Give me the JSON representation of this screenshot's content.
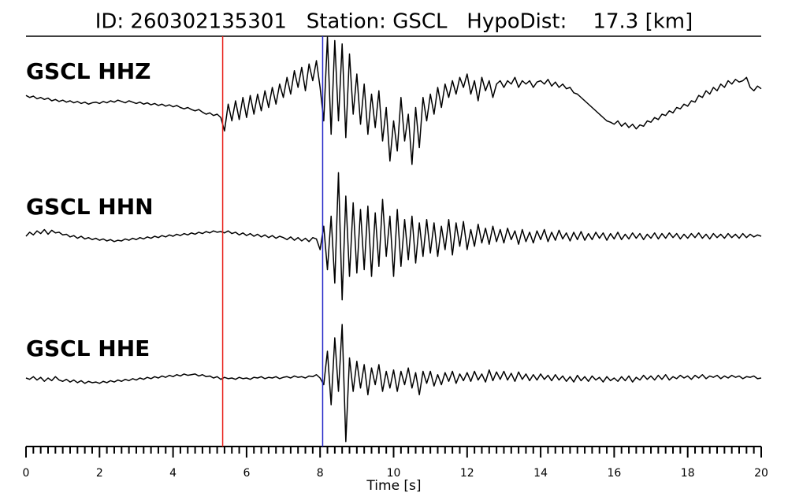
{
  "chart_data": {
    "type": "seismogram",
    "title": "ID: 260302135301   Station: GSCL   HypoDist:    17.3 [km]",
    "xlabel": "Time [s]",
    "xlim": [
      0,
      20
    ],
    "xticks": [
      0,
      2,
      4,
      6,
      8,
      10,
      12,
      14,
      16,
      18,
      20
    ],
    "xminorticks": [
      0.2,
      0.4,
      0.6,
      0.8,
      1,
      1.2,
      1.4,
      1.6,
      1.8,
      2.2,
      2.4,
      2.6,
      2.8,
      3,
      3.2,
      3.4,
      3.6,
      3.8,
      4.2,
      4.4,
      4.6,
      4.8,
      5,
      5.2,
      5.4,
      5.6,
      5.8,
      6.2,
      6.4,
      6.6,
      6.8,
      7,
      7.2,
      7.4,
      7.6,
      7.8,
      8.2,
      8.4,
      8.6,
      8.8,
      9,
      9.2,
      9.4,
      9.6,
      9.8,
      10.2,
      10.4,
      10.6,
      10.8,
      11,
      11.2,
      11.4,
      11.6,
      11.8,
      12.2,
      12.4,
      12.6,
      12.8,
      13,
      13.2,
      13.4,
      13.6,
      13.8,
      14.2,
      14.4,
      14.6,
      14.8,
      15,
      15.2,
      15.4,
      15.6,
      15.8,
      16.2,
      16.4,
      16.6,
      16.8,
      17,
      17.2,
      17.4,
      17.6,
      17.8,
      18.2,
      18.4,
      18.6,
      18.8,
      19,
      19.2,
      19.4,
      19.6,
      19.8
    ],
    "ylim": [
      -1,
      1
    ],
    "label_color": "#4c9a0a",
    "picks": [
      {
        "value": 5.35,
        "color": "#e8201b"
      },
      {
        "value": 8.07,
        "color": "#2326c8"
      }
    ],
    "x": [
      0,
      0.1,
      0.2,
      0.3,
      0.4,
      0.5,
      0.6,
      0.7,
      0.8,
      0.9,
      1,
      1.1,
      1.2,
      1.3,
      1.4,
      1.5,
      1.6,
      1.7,
      1.8,
      1.9,
      2,
      2.1,
      2.2,
      2.3,
      2.4,
      2.5,
      2.6,
      2.7,
      2.8,
      2.9,
      3,
      3.1,
      3.2,
      3.3,
      3.4,
      3.5,
      3.6,
      3.7,
      3.8,
      3.9,
      4,
      4.1,
      4.2,
      4.3,
      4.4,
      4.5,
      4.6,
      4.7,
      4.8,
      4.9,
      5,
      5.1,
      5.2,
      5.3,
      5.4,
      5.5,
      5.6,
      5.7,
      5.8,
      5.9,
      6,
      6.1,
      6.2,
      6.3,
      6.4,
      6.5,
      6.6,
      6.7,
      6.8,
      6.9,
      7,
      7.1,
      7.2,
      7.3,
      7.4,
      7.5,
      7.6,
      7.7,
      7.8,
      7.9,
      8,
      8.1,
      8.2,
      8.3,
      8.4,
      8.5,
      8.6,
      8.7,
      8.8,
      8.9,
      9,
      9.1,
      9.2,
      9.3,
      9.4,
      9.5,
      9.6,
      9.7,
      9.8,
      9.9,
      10,
      10.1,
      10.2,
      10.3,
      10.4,
      10.5,
      10.6,
      10.7,
      10.8,
      10.9,
      11,
      11.1,
      11.2,
      11.3,
      11.4,
      11.5,
      11.6,
      11.7,
      11.8,
      11.9,
      12,
      12.1,
      12.2,
      12.3,
      12.4,
      12.5,
      12.6,
      12.7,
      12.8,
      12.9,
      13,
      13.1,
      13.2,
      13.3,
      13.4,
      13.5,
      13.6,
      13.7,
      13.8,
      13.9,
      14,
      14.1,
      14.2,
      14.3,
      14.4,
      14.5,
      14.6,
      14.7,
      14.8,
      14.9,
      15,
      15.1,
      15.2,
      15.3,
      15.4,
      15.5,
      15.6,
      15.7,
      15.8,
      15.9,
      16,
      16.1,
      16.2,
      16.3,
      16.4,
      16.5,
      16.6,
      16.7,
      16.8,
      16.9,
      17,
      17.1,
      17.2,
      17.3,
      17.4,
      17.5,
      17.6,
      17.7,
      17.8,
      17.9,
      18,
      18.1,
      18.2,
      18.3,
      18.4,
      18.5,
      18.6,
      18.7,
      18.8,
      18.9,
      19,
      19.1,
      19.2,
      19.3,
      19.4,
      19.5,
      19.6,
      19.7,
      19.8,
      19.9,
      20
    ],
    "series": [
      {
        "name": "GSCL HHZ",
        "color": "#000000",
        "values": [
          0.08,
          0.05,
          0.07,
          0.03,
          0.05,
          0.02,
          0.04,
          0.0,
          0.02,
          -0.01,
          0.01,
          -0.02,
          0.0,
          -0.03,
          -0.01,
          -0.04,
          -0.02,
          -0.05,
          -0.03,
          -0.02,
          -0.04,
          -0.01,
          -0.03,
          0.0,
          -0.02,
          0.01,
          -0.01,
          -0.03,
          0.0,
          -0.02,
          -0.04,
          -0.02,
          -0.05,
          -0.03,
          -0.06,
          -0.04,
          -0.07,
          -0.05,
          -0.08,
          -0.06,
          -0.09,
          -0.07,
          -0.1,
          -0.12,
          -0.1,
          -0.13,
          -0.15,
          -0.13,
          -0.17,
          -0.2,
          -0.18,
          -0.22,
          -0.2,
          -0.25,
          -0.45,
          -0.05,
          -0.3,
          0.0,
          -0.28,
          0.05,
          -0.25,
          0.08,
          -0.2,
          0.1,
          -0.15,
          0.15,
          -0.1,
          0.2,
          -0.05,
          0.25,
          0.05,
          0.35,
          0.1,
          0.45,
          0.2,
          0.5,
          0.15,
          0.55,
          0.3,
          0.6,
          0.2,
          -0.3,
          0.95,
          -0.5,
          0.9,
          -0.3,
          0.85,
          -0.55,
          0.7,
          -0.2,
          0.4,
          -0.35,
          0.25,
          -0.5,
          0.1,
          -0.4,
          0.15,
          -0.6,
          -0.1,
          -0.9,
          -0.3,
          -0.75,
          0.05,
          -0.6,
          -0.2,
          -0.95,
          -0.1,
          -0.7,
          0.05,
          -0.3,
          0.1,
          -0.2,
          0.2,
          -0.1,
          0.25,
          0.05,
          0.3,
          0.1,
          0.35,
          0.2,
          0.4,
          0.1,
          0.3,
          0.0,
          0.35,
          0.15,
          0.3,
          0.05,
          0.25,
          0.3,
          0.2,
          0.3,
          0.25,
          0.35,
          0.2,
          0.3,
          0.25,
          0.3,
          0.2,
          0.28,
          0.3,
          0.25,
          0.32,
          0.22,
          0.28,
          0.2,
          0.25,
          0.18,
          0.2,
          0.12,
          0.1,
          0.05,
          0.0,
          -0.05,
          -0.1,
          -0.15,
          -0.2,
          -0.25,
          -0.3,
          -0.32,
          -0.35,
          -0.3,
          -0.38,
          -0.33,
          -0.4,
          -0.35,
          -0.42,
          -0.36,
          -0.38,
          -0.3,
          -0.32,
          -0.25,
          -0.28,
          -0.2,
          -0.22,
          -0.15,
          -0.18,
          -0.1,
          -0.12,
          -0.05,
          -0.08,
          0.0,
          -0.02,
          0.08,
          0.05,
          0.15,
          0.1,
          0.2,
          0.15,
          0.25,
          0.2,
          0.3,
          0.25,
          0.32,
          0.28,
          0.3,
          0.35,
          0.2,
          0.15,
          0.22,
          0.18
        ]
      },
      {
        "name": "GSCL HHN",
        "color": "#000000",
        "values": [
          0.0,
          0.06,
          0.02,
          0.08,
          0.04,
          0.1,
          0.03,
          0.09,
          0.05,
          0.06,
          0.02,
          0.03,
          -0.01,
          0.01,
          -0.03,
          0.0,
          -0.04,
          -0.02,
          -0.05,
          -0.03,
          -0.06,
          -0.04,
          -0.07,
          -0.05,
          -0.08,
          -0.06,
          -0.07,
          -0.04,
          -0.06,
          -0.03,
          -0.05,
          -0.02,
          -0.04,
          -0.01,
          -0.03,
          0.0,
          -0.02,
          0.01,
          -0.01,
          0.02,
          0.0,
          0.03,
          0.01,
          0.04,
          0.02,
          0.05,
          0.03,
          0.06,
          0.04,
          0.07,
          0.05,
          0.08,
          0.06,
          0.07,
          0.05,
          0.08,
          0.04,
          0.06,
          0.02,
          0.05,
          0.01,
          0.04,
          0.0,
          0.03,
          -0.01,
          0.02,
          -0.02,
          0.01,
          -0.03,
          0.0,
          -0.02,
          -0.05,
          -0.01,
          -0.06,
          -0.02,
          -0.07,
          -0.03,
          -0.08,
          -0.02,
          -0.04,
          -0.2,
          0.15,
          -0.5,
          0.3,
          -0.7,
          0.95,
          -0.95,
          0.6,
          -0.6,
          0.5,
          -0.55,
          0.4,
          -0.5,
          0.45,
          -0.6,
          0.35,
          -0.45,
          0.55,
          -0.3,
          0.3,
          -0.6,
          0.4,
          -0.45,
          0.25,
          -0.35,
          0.3,
          -0.4,
          0.2,
          -0.3,
          0.25,
          -0.25,
          0.2,
          -0.3,
          0.15,
          -0.2,
          0.25,
          -0.28,
          0.2,
          -0.15,
          0.22,
          -0.2,
          0.1,
          -0.15,
          0.18,
          -0.1,
          0.12,
          -0.12,
          0.15,
          -0.08,
          0.1,
          -0.1,
          0.12,
          -0.05,
          0.08,
          -0.12,
          0.1,
          -0.08,
          0.06,
          -0.1,
          0.08,
          -0.05,
          0.1,
          -0.08,
          0.06,
          -0.06,
          0.09,
          -0.04,
          0.05,
          -0.07,
          0.06,
          -0.05,
          0.07,
          -0.06,
          0.04,
          -0.05,
          0.06,
          -0.03,
          0.05,
          -0.06,
          0.04,
          -0.04,
          0.06,
          -0.05,
          0.03,
          -0.04,
          0.05,
          -0.03,
          0.04,
          -0.05,
          0.03,
          -0.03,
          0.05,
          -0.04,
          0.04,
          -0.03,
          0.05,
          -0.02,
          0.04,
          -0.04,
          0.03,
          -0.03,
          0.04,
          -0.02,
          0.05,
          -0.03,
          0.03,
          -0.04,
          0.04,
          -0.02,
          0.03,
          -0.03,
          0.04,
          -0.02,
          0.03,
          -0.03,
          0.04,
          -0.02,
          0.03,
          -0.01,
          0.02,
          0.0
        ]
      },
      {
        "name": "GSCL HHE",
        "color": "#000000",
        "values": [
          0.0,
          -0.02,
          0.02,
          -0.03,
          0.01,
          -0.05,
          0.0,
          -0.04,
          0.02,
          -0.03,
          -0.05,
          -0.02,
          -0.06,
          -0.03,
          -0.07,
          -0.04,
          -0.08,
          -0.05,
          -0.07,
          -0.06,
          -0.08,
          -0.05,
          -0.07,
          -0.04,
          -0.06,
          -0.03,
          -0.05,
          -0.02,
          -0.04,
          -0.01,
          -0.03,
          0.0,
          -0.02,
          0.01,
          -0.01,
          0.02,
          0.0,
          0.03,
          0.01,
          0.04,
          0.02,
          0.05,
          0.03,
          0.06,
          0.04,
          0.05,
          0.06,
          0.03,
          0.05,
          0.02,
          0.03,
          0.0,
          0.02,
          -0.02,
          0.01,
          -0.01,
          0.0,
          -0.02,
          0.01,
          -0.01,
          0.0,
          -0.02,
          0.01,
          0.0,
          0.02,
          -0.01,
          0.01,
          0.0,
          0.02,
          -0.01,
          0.01,
          0.02,
          0.0,
          0.03,
          0.01,
          0.02,
          0.0,
          0.03,
          0.02,
          0.05,
          0.0,
          -0.1,
          0.4,
          -0.4,
          0.6,
          -0.2,
          0.8,
          -0.95,
          0.3,
          -0.2,
          0.25,
          -0.15,
          0.2,
          -0.25,
          0.15,
          -0.1,
          0.2,
          -0.2,
          0.1,
          -0.15,
          0.12,
          -0.2,
          0.1,
          -0.1,
          0.15,
          -0.15,
          0.08,
          -0.25,
          0.1,
          -0.08,
          0.1,
          -0.12,
          0.05,
          -0.1,
          0.08,
          -0.05,
          0.1,
          -0.08,
          0.06,
          -0.04,
          0.08,
          -0.05,
          0.1,
          -0.03,
          0.06,
          -0.06,
          0.12,
          -0.04,
          0.09,
          -0.02,
          0.1,
          -0.03,
          0.07,
          -0.05,
          0.09,
          -0.02,
          0.06,
          -0.04,
          0.05,
          -0.03,
          0.06,
          -0.02,
          0.04,
          -0.04,
          0.05,
          -0.03,
          0.03,
          -0.05,
          0.02,
          -0.06,
          0.04,
          -0.04,
          0.02,
          -0.05,
          0.03,
          -0.03,
          0.01,
          -0.06,
          0.02,
          -0.04,
          0.0,
          -0.05,
          0.02,
          -0.04,
          0.03,
          -0.06,
          0.01,
          -0.03,
          0.04,
          -0.02,
          0.03,
          -0.03,
          0.04,
          -0.02,
          0.05,
          -0.03,
          0.02,
          -0.01,
          0.04,
          0.0,
          0.03,
          -0.02,
          0.04,
          0.0,
          0.05,
          -0.01,
          0.03,
          0.01,
          0.04,
          -0.01,
          0.03,
          0.0,
          0.04,
          0.01,
          0.03,
          -0.01,
          0.02,
          0.01,
          0.03,
          -0.01,
          0.0
        ]
      }
    ]
  }
}
